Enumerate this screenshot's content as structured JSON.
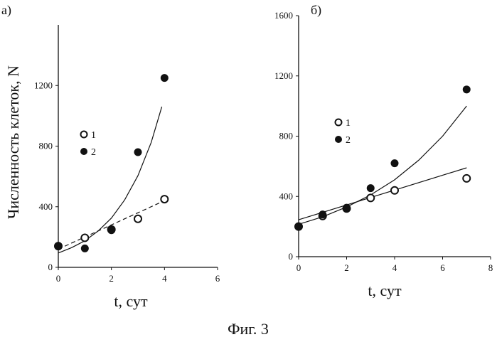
{
  "figure_caption": "Фиг. 3",
  "y_axis_title": "Численность клеток, N",
  "colors": {
    "ink": "#111111",
    "open_marker_fill": "#ffffff",
    "background": "#ffffff"
  },
  "chart_data": [
    {
      "panel_label": "а)",
      "type": "scatter",
      "xlabel": "t, сут",
      "ylabel": "Численность клеток, N",
      "xlim": [
        0,
        6
      ],
      "ylim": [
        0,
        1600
      ],
      "x_ticks": [
        "0",
        "2",
        "4",
        "6"
      ],
      "y_ticks": [
        "0",
        "400",
        "800",
        "1200"
      ],
      "legend": [
        {
          "label": "1",
          "marker": "open-circle"
        },
        {
          "label": "2",
          "marker": "filled-circle"
        }
      ],
      "legend_placement": "center-left",
      "series": [
        {
          "legend_label": "1",
          "marker": "open-circle",
          "x": [
            0,
            1,
            2,
            3,
            4
          ],
          "y": [
            140,
            195,
            250,
            320,
            450
          ]
        },
        {
          "legend_label": "2",
          "marker": "filled-circle",
          "x": [
            0,
            1,
            2,
            3,
            4
          ],
          "y": [
            140,
            125,
            245,
            760,
            1250
          ]
        }
      ],
      "fit_curves": [
        {
          "for_series": "2",
          "style": "solid",
          "type": "exponential",
          "x": [
            0,
            0.5,
            1,
            1.5,
            2,
            2.5,
            3,
            3.5,
            3.9
          ],
          "y": [
            95,
            130,
            175,
            240,
            325,
            445,
            605,
            825,
            1060
          ]
        },
        {
          "for_series": "1",
          "style": "dashed",
          "type": "linear",
          "x": [
            0,
            4
          ],
          "y": [
            120,
            440
          ]
        }
      ],
      "grid": false
    },
    {
      "panel_label": "б)",
      "type": "scatter",
      "xlabel": "t, сут",
      "ylabel": "",
      "xlim": [
        0,
        8
      ],
      "ylim": [
        0,
        1600
      ],
      "x_ticks": [
        "0",
        "2",
        "4",
        "6",
        "8"
      ],
      "y_ticks": [
        "0",
        "400",
        "800",
        "1200",
        "1600"
      ],
      "legend": [
        {
          "label": "1",
          "marker": "open-circle"
        },
        {
          "label": "2",
          "marker": "filled-circle"
        }
      ],
      "legend_placement": "center-left",
      "series": [
        {
          "legend_label": "1",
          "marker": "open-circle",
          "x": [
            0,
            1,
            2,
            3,
            4,
            7
          ],
          "y": [
            200,
            270,
            320,
            390,
            440,
            520
          ]
        },
        {
          "legend_label": "2",
          "marker": "filled-circle",
          "x": [
            0,
            1,
            2,
            3,
            4,
            7
          ],
          "y": [
            200,
            280,
            325,
            455,
            620,
            1110
          ]
        }
      ],
      "fit_curves": [
        {
          "for_series": "2",
          "style": "solid",
          "type": "exponential",
          "x": [
            0,
            1,
            2,
            3,
            4,
            5,
            6,
            7
          ],
          "y": [
            215,
            265,
            330,
            410,
            510,
            640,
            800,
            1000
          ]
        },
        {
          "for_series": "1",
          "style": "solid",
          "type": "linear",
          "x": [
            0,
            7
          ],
          "y": [
            245,
            590
          ]
        }
      ],
      "grid": false
    }
  ]
}
